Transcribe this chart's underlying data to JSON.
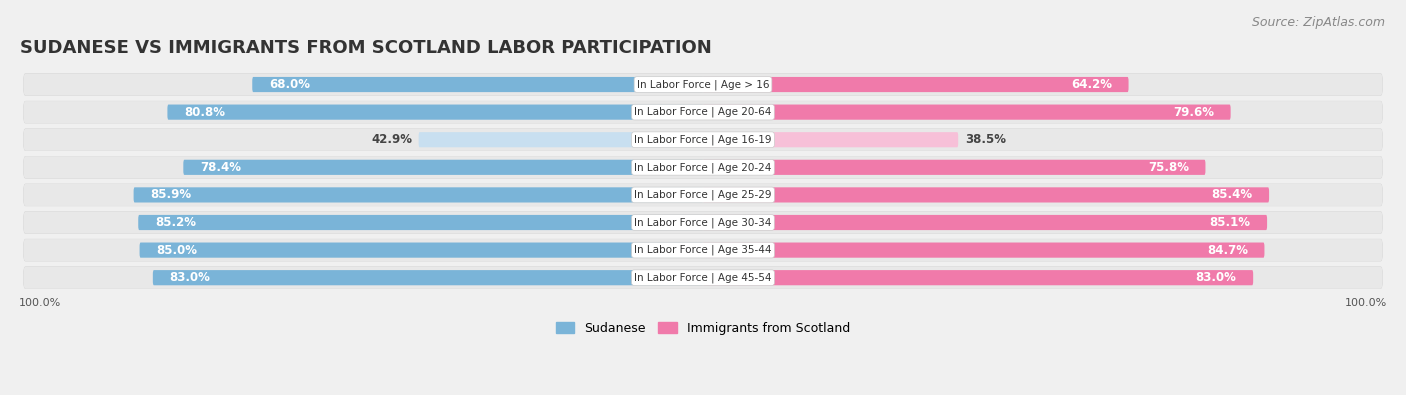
{
  "title": "SUDANESE VS IMMIGRANTS FROM SCOTLAND LABOR PARTICIPATION",
  "source": "Source: ZipAtlas.com",
  "categories": [
    "In Labor Force | Age > 16",
    "In Labor Force | Age 20-64",
    "In Labor Force | Age 16-19",
    "In Labor Force | Age 20-24",
    "In Labor Force | Age 25-29",
    "In Labor Force | Age 30-34",
    "In Labor Force | Age 35-44",
    "In Labor Force | Age 45-54"
  ],
  "sudanese": [
    68.0,
    80.8,
    42.9,
    78.4,
    85.9,
    85.2,
    85.0,
    83.0
  ],
  "scotland": [
    64.2,
    79.6,
    38.5,
    75.8,
    85.4,
    85.1,
    84.7,
    83.0
  ],
  "sudanese_color_full": "#7ab4d8",
  "sudanese_color_light": "#c8dff0",
  "scotland_color_full": "#f07aaa",
  "scotland_color_light": "#f7c0d8",
  "bar_height": 0.55,
  "max_value": 100.0,
  "bg_color": "#f0f0f0",
  "row_bg": "#e8e8e8",
  "title_fontsize": 13,
  "source_fontsize": 9,
  "label_fontsize": 8.5,
  "cat_fontsize": 7.5,
  "legend_fontsize": 9,
  "axis_label_fontsize": 8,
  "threshold_full_color": 60
}
